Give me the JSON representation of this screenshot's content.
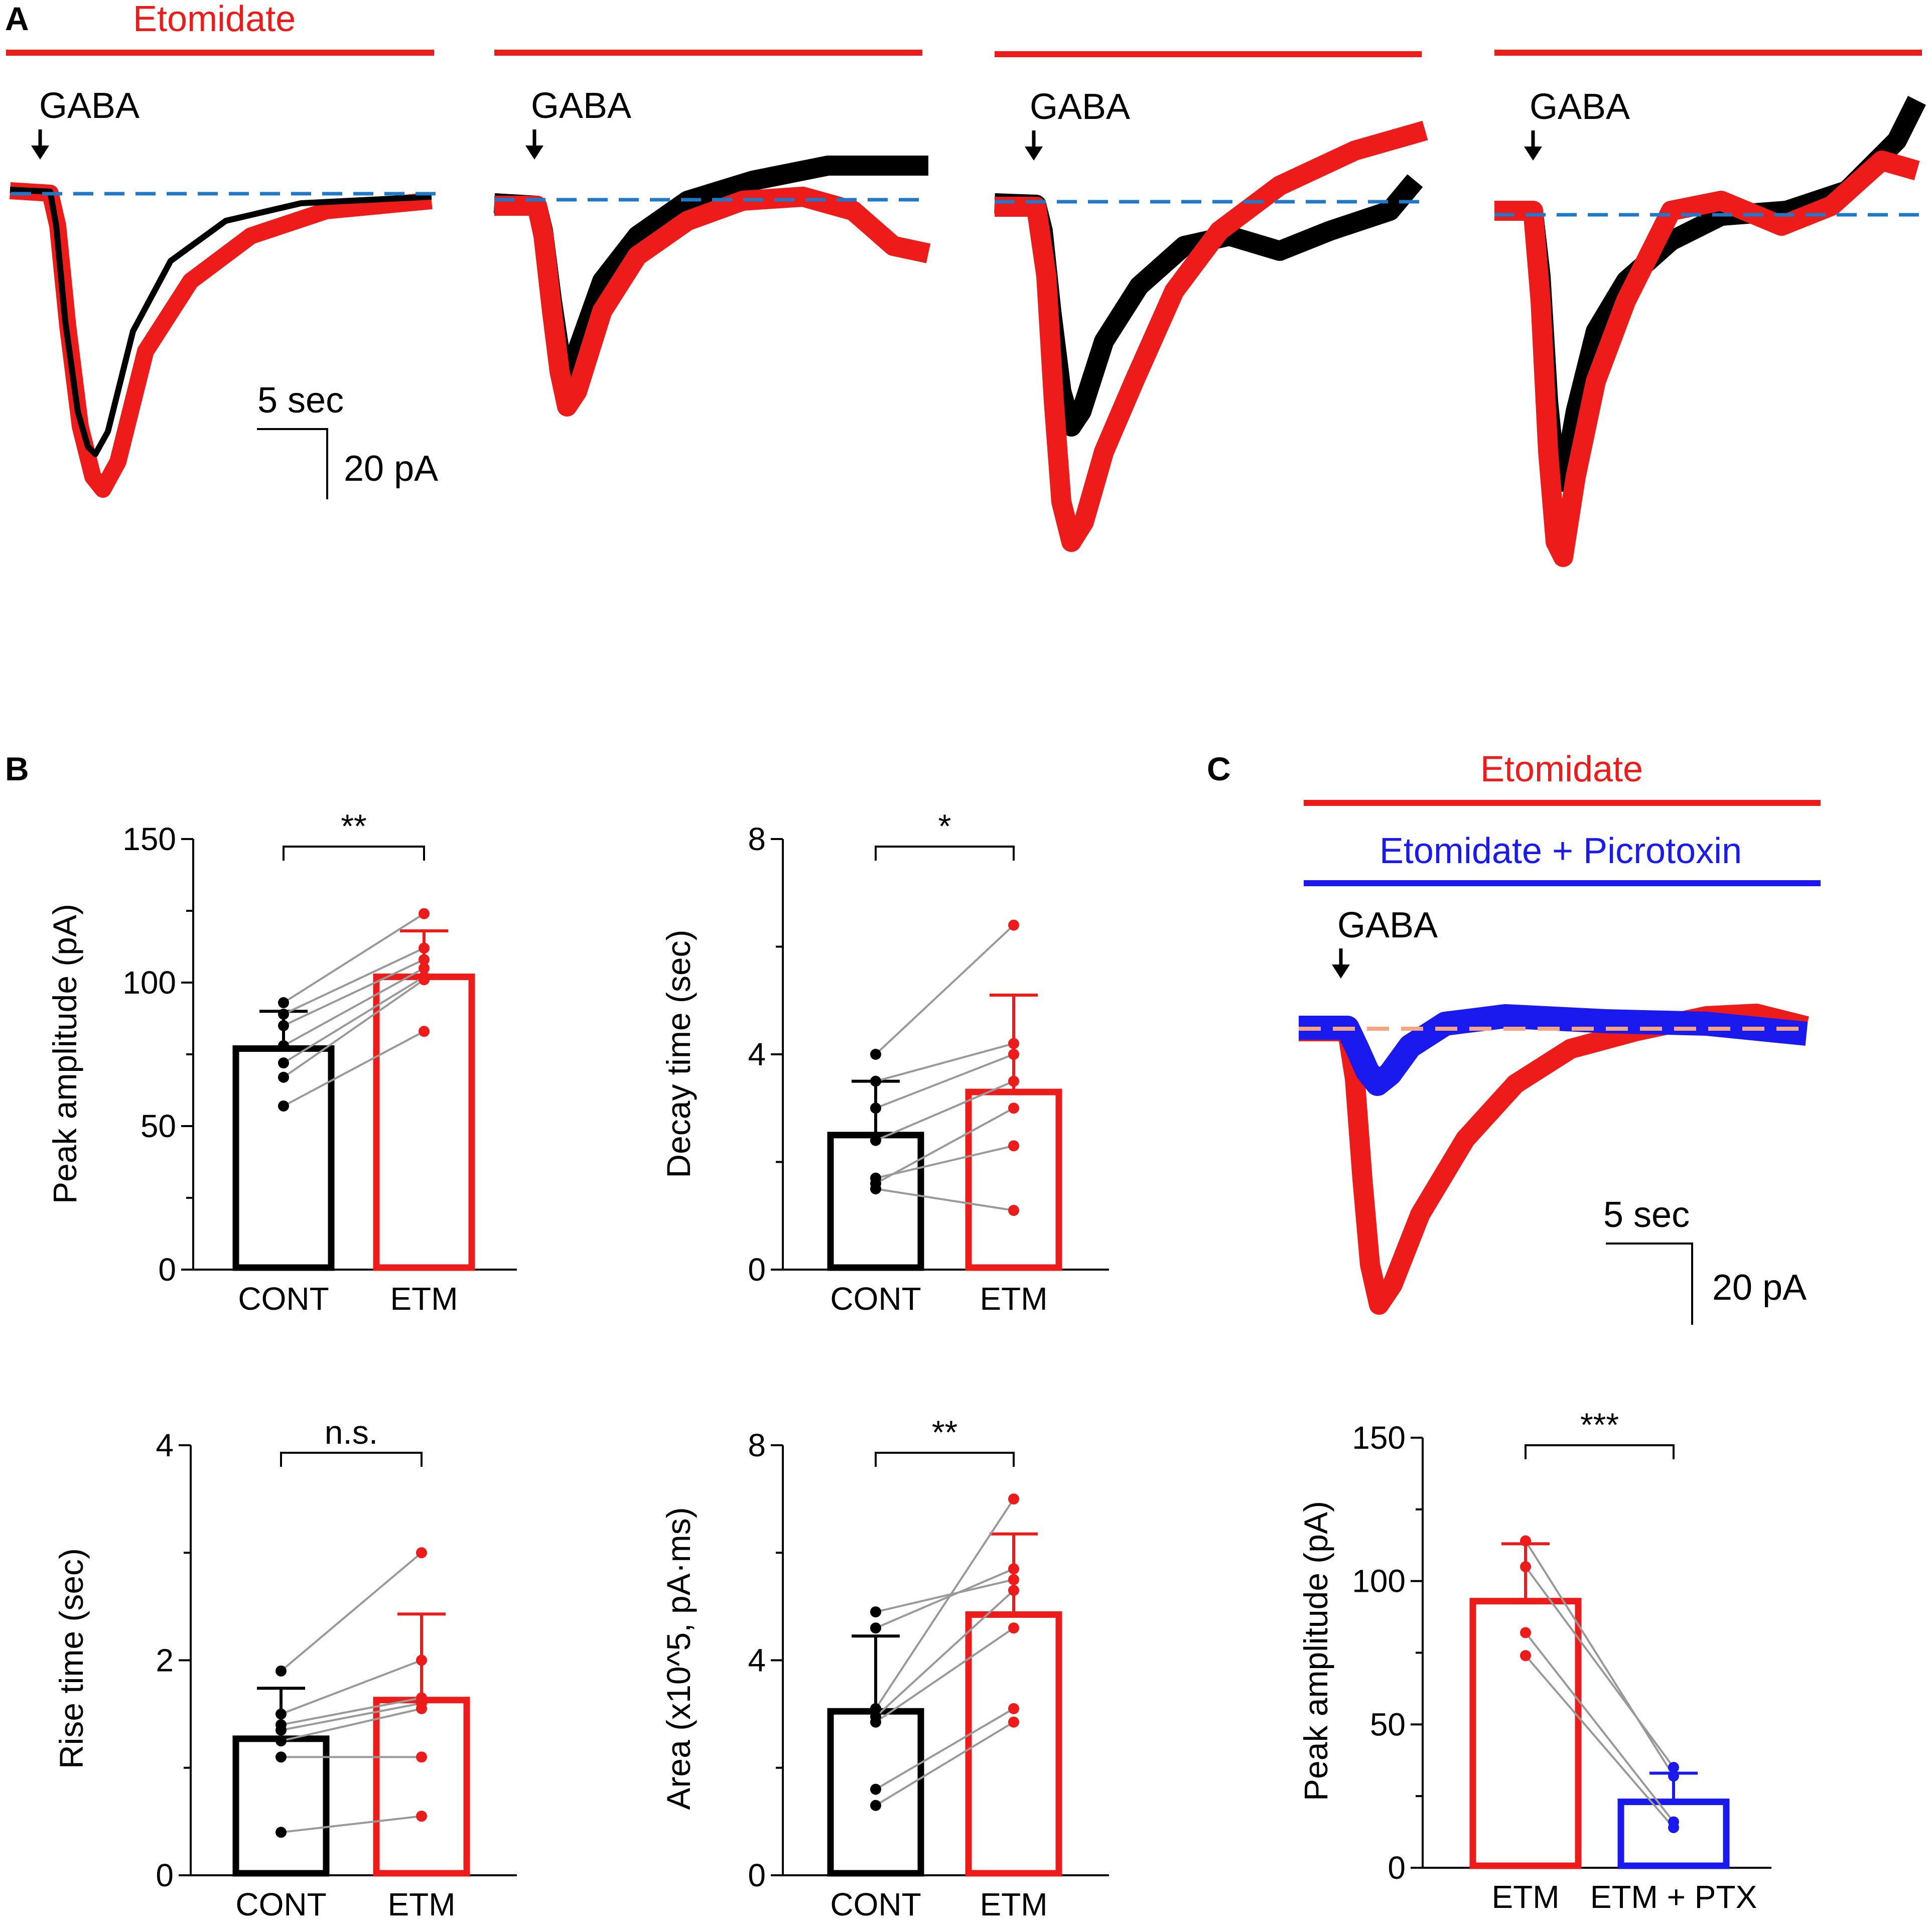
{
  "colors": {
    "etomidate": "#ee1b1b",
    "control": "#000000",
    "picrotoxin": "#1a1aee",
    "baseline_a": "#1f78c8",
    "baseline_c": "#f4a582",
    "link": "#999999"
  },
  "panels": {
    "a": "A",
    "b": "B",
    "c": "C"
  },
  "panel_a": {
    "drug_label": "Etomidate",
    "stim_label": "GABA",
    "scale_time": "5 sec",
    "scale_current": "20 pA"
  },
  "panel_c": {
    "drug1_label": "Etomidate",
    "drug2_label": "Etomidate + Picrotoxin",
    "stim_label": "GABA",
    "scale_time": "5 sec",
    "scale_current": "20 pA"
  },
  "chart_data": [
    {
      "type": "bar",
      "id": "peak",
      "ylabel": "Peak amplitude (pA)",
      "ylim": [
        0,
        150
      ],
      "yticks": [
        "0",
        "50",
        "100",
        "150"
      ],
      "categories": [
        "CONT",
        "ETM"
      ],
      "means": [
        77,
        102
      ],
      "errors": [
        13,
        16
      ],
      "pairs": [
        [
          93,
          124
        ],
        [
          89,
          112
        ],
        [
          85,
          108
        ],
        [
          78,
          105
        ],
        [
          72,
          102
        ],
        [
          67,
          101
        ],
        [
          57,
          83
        ]
      ],
      "significance": "**"
    },
    {
      "type": "bar",
      "id": "decay",
      "ylabel": "Decay time (sec)",
      "ylim": [
        0,
        8
      ],
      "yticks": [
        "0",
        "4",
        "8"
      ],
      "categories": [
        "CONT",
        "ETM"
      ],
      "means": [
        2.5,
        3.3
      ],
      "errors": [
        1.0,
        1.8
      ],
      "pairs": [
        [
          4.0,
          6.4
        ],
        [
          3.5,
          4.2
        ],
        [
          3.0,
          4.0
        ],
        [
          2.4,
          3.5
        ],
        [
          1.7,
          2.3
        ],
        [
          1.6,
          3.0
        ],
        [
          1.5,
          1.1
        ]
      ],
      "significance": "*"
    },
    {
      "type": "bar",
      "id": "rise",
      "ylabel": "Rise time (sec)",
      "ylim": [
        0,
        4
      ],
      "yticks": [
        "0",
        "2",
        "4"
      ],
      "categories": [
        "CONT",
        "ETM"
      ],
      "means": [
        1.27,
        1.63
      ],
      "errors": [
        0.47,
        0.8
      ],
      "pairs": [
        [
          1.9,
          3.0
        ],
        [
          1.5,
          2.0
        ],
        [
          1.4,
          1.65
        ],
        [
          1.35,
          1.6
        ],
        [
          1.25,
          1.55
        ],
        [
          1.1,
          1.1
        ],
        [
          0.4,
          0.55
        ]
      ],
      "significance": "n.s."
    },
    {
      "type": "bar",
      "id": "area",
      "ylabel": "Area (x10^5, pA·ms)",
      "ylim": [
        0,
        8
      ],
      "yticks": [
        "0",
        "4",
        "8"
      ],
      "categories": [
        "CONT",
        "ETM"
      ],
      "means": [
        3.05,
        4.85
      ],
      "errors": [
        1.4,
        1.5
      ],
      "pairs": [
        [
          4.9,
          5.5
        ],
        [
          4.6,
          5.7
        ],
        [
          3.1,
          7.0
        ],
        [
          2.95,
          5.3
        ],
        [
          2.85,
          4.6
        ],
        [
          1.6,
          3.1
        ],
        [
          1.3,
          2.85
        ]
      ],
      "significance": "**"
    },
    {
      "type": "bar",
      "id": "peak_ptx",
      "ylabel": "Peak amplitude (pA)",
      "ylim": [
        0,
        150
      ],
      "yticks": [
        "0",
        "50",
        "100",
        "150"
      ],
      "categories": [
        "ETM",
        "ETM + PTX"
      ],
      "means": [
        93,
        23
      ],
      "errors": [
        20,
        10
      ],
      "pairs": [
        [
          114,
          32
        ],
        [
          105,
          35
        ],
        [
          82,
          16
        ],
        [
          74,
          14
        ]
      ],
      "significance": "***"
    }
  ]
}
